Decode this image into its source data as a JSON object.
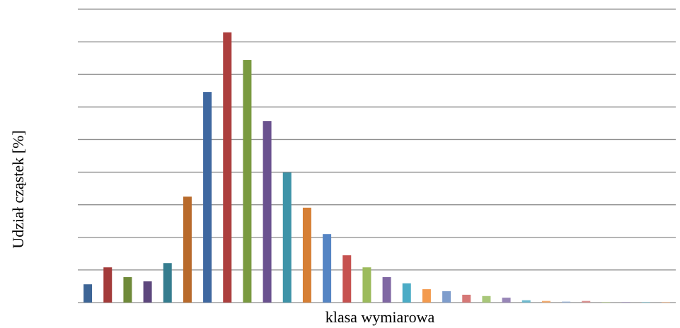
{
  "chart_data": {
    "type": "bar",
    "x_label": "klasa wymiarowa",
    "y_label": "Udział cząstek [%]",
    "categories": [
      null,
      null,
      null,
      null,
      null,
      null,
      null,
      null,
      null,
      null,
      null,
      null,
      null,
      null,
      null,
      null,
      null,
      null,
      null,
      null,
      null,
      null,
      null,
      null,
      null,
      null,
      null,
      null,
      null,
      null
    ],
    "values": [
      0.56,
      1.08,
      0.78,
      0.65,
      1.21,
      3.25,
      6.46,
      8.29,
      7.44,
      5.57,
      3.99,
      2.91,
      2.1,
      1.45,
      1.08,
      0.78,
      0.59,
      0.41,
      0.35,
      0.24,
      0.2,
      0.15,
      0.07,
      0.05,
      0.03,
      0.05,
      0.02,
      0.02,
      0.02,
      0.02
    ],
    "colors": [
      "#3d6596",
      "#a33b3a",
      "#6f8a3a",
      "#5d477d",
      "#357d8f",
      "#b86a2b",
      "#3f68a0",
      "#ac3f3e",
      "#7a9a40",
      "#6a528f",
      "#3e93a8",
      "#d67f35",
      "#5585c4",
      "#c65250",
      "#9cbb5c",
      "#8068a3",
      "#4bacc6",
      "#f39a4e",
      "#7e9dcc",
      "#d67877",
      "#a9c77a",
      "#9886b7",
      "#6fbbd0",
      "#f4ad72",
      "#9bb3d8",
      "#dc9392",
      "#bed39a",
      "#ad9fc6",
      "#93cbda",
      "#f6c095"
    ],
    "ylim": [
      0,
      9
    ],
    "yticks": [
      0,
      1,
      2,
      3,
      4,
      5,
      6,
      7,
      8,
      9
    ],
    "grid": true
  }
}
